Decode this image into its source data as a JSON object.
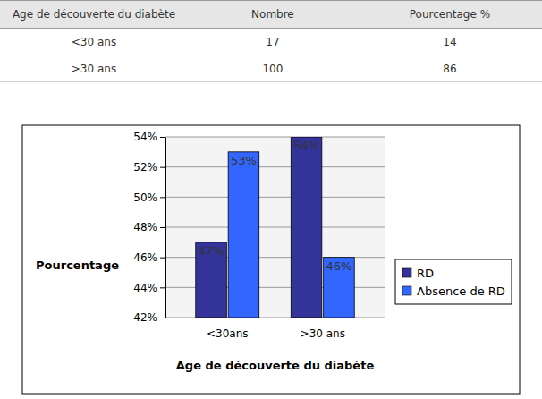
{
  "table": {
    "header": [
      "Age de découverte du diabète",
      "Nombre",
      "Pourcentage %"
    ],
    "rows": [
      [
        "<30 ans",
        17,
        14
      ],
      [
        ">30 ans",
        100,
        86
      ]
    ]
  },
  "chart_data": {
    "type": "bar",
    "x_label": "Age de découverte du diabète",
    "y_label": "Pourcentage",
    "categories": [
      "<30ans",
      ">30 ans"
    ],
    "series": [
      {
        "name": "RD",
        "color": "#333399",
        "values": [
          47,
          54
        ],
        "value_labels": [
          "47%",
          "54%"
        ]
      },
      {
        "name": "Absence de RD",
        "color": "#3366ff",
        "values": [
          53,
          46
        ],
        "value_labels": [
          "53%",
          "46%"
        ]
      }
    ],
    "ylim": [
      42,
      54
    ],
    "yticks": [
      {
        "value": 42,
        "label": "42%"
      },
      {
        "value": 44,
        "label": "44%"
      },
      {
        "value": 46,
        "label": "46%"
      },
      {
        "value": 48,
        "label": "48%"
      },
      {
        "value": 50,
        "label": "50%"
      },
      {
        "value": 52,
        "label": "52%"
      },
      {
        "value": 54,
        "label": "54%"
      }
    ],
    "grid": true,
    "legend": "right",
    "data_labels": true
  }
}
